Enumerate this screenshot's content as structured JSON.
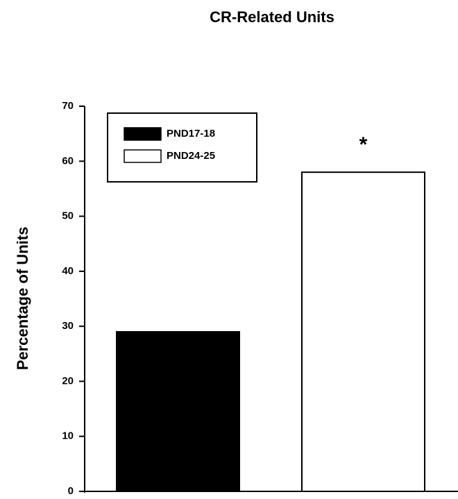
{
  "chart_data": {
    "type": "bar",
    "title": "CR-Related Units",
    "y_label": "Percentage of Units",
    "categories": [
      null
    ],
    "series": [
      {
        "name": "PND17-18",
        "color": "#000000",
        "values": [
          29
        ]
      },
      {
        "name": "PND24-25",
        "color": "#ffffff",
        "values": [
          58
        ]
      }
    ],
    "annotation": "*",
    "ylim": [
      0,
      70
    ],
    "yticks": [
      0,
      10,
      20,
      30,
      40,
      50,
      60,
      70
    ],
    "grid": false,
    "legend": "upper left"
  }
}
